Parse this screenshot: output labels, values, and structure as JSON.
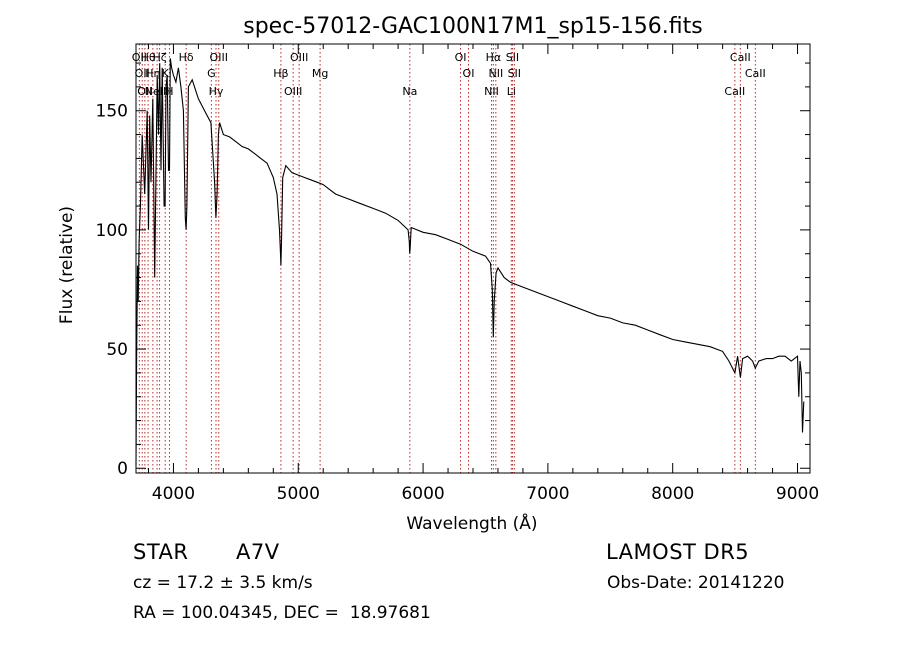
{
  "chart_data": {
    "type": "line",
    "title": "spec-57012-GAC100N17M1_sp15-156.fits",
    "xlabel": "Wavelength (Å)",
    "ylabel": "Flux (relative)",
    "xlim": [
      3700,
      9100
    ],
    "ylim": [
      -2,
      178
    ],
    "xticks": [
      4000,
      5000,
      6000,
      7000,
      8000,
      9000
    ],
    "yticks": [
      0,
      50,
      100,
      150
    ],
    "grid": false,
    "series": [
      {
        "x": [
          3700,
          3705,
          3712,
          3718,
          3725,
          3735,
          3750,
          3770,
          3790,
          3800,
          3810,
          3820,
          3835,
          3850,
          3870,
          3880,
          3890,
          3900,
          3910,
          3925,
          3933,
          3940,
          3950,
          3960,
          3968,
          3975,
          3985,
          4000,
          4020,
          4040,
          4060,
          4080,
          4095,
          4101,
          4108,
          4120,
          4150,
          4200,
          4250,
          4300,
          4330,
          4340,
          4350,
          4360,
          4370,
          4400,
          4450,
          4500,
          4550,
          4600,
          4650,
          4700,
          4750,
          4800,
          4830,
          4850,
          4858,
          4861,
          4866,
          4875,
          4900,
          4950,
          5000,
          5050,
          5100,
          5150,
          5200,
          5250,
          5300,
          5400,
          5500,
          5600,
          5700,
          5800,
          5880,
          5890,
          5893,
          5896,
          5905,
          6000,
          6100,
          6200,
          6300,
          6400,
          6500,
          6540,
          6555,
          6563,
          6570,
          6585,
          6600,
          6650,
          6700,
          6800,
          6900,
          7000,
          7100,
          7200,
          7300,
          7400,
          7500,
          7600,
          7700,
          7800,
          7900,
          8000,
          8100,
          8200,
          8300,
          8400,
          8450,
          8498,
          8520,
          8542,
          8560,
          8600,
          8640,
          8662,
          8690,
          8750,
          8800,
          8850,
          8900,
          8950,
          9000,
          9010,
          9020,
          9030,
          9040,
          9050
        ],
        "y": [
          1,
          45,
          85,
          70,
          95,
          110,
          140,
          115,
          150,
          100,
          148,
          120,
          155,
          80,
          165,
          140,
          170,
          125,
          168,
          110,
          110,
          160,
          165,
          125,
          125,
          172,
          168,
          165,
          162,
          168,
          160,
          150,
          105,
          100,
          110,
          160,
          163,
          155,
          150,
          145,
          120,
          105,
          115,
          140,
          145,
          140,
          139,
          137,
          135,
          134,
          132,
          130,
          128,
          122,
          115,
          100,
          90,
          85,
          95,
          122,
          127,
          124,
          123,
          122,
          121,
          120,
          119,
          117,
          115,
          113,
          111,
          109,
          107,
          104,
          100,
          95,
          90,
          92,
          101,
          99,
          98,
          96,
          94,
          91,
          89,
          86,
          75,
          55,
          70,
          82,
          84,
          80,
          78,
          76,
          74,
          72,
          70,
          68,
          66,
          64,
          63,
          61,
          60,
          58,
          56,
          54,
          53,
          52,
          51,
          49,
          45,
          40,
          47,
          38,
          46,
          47,
          45,
          42,
          45,
          46,
          46,
          47,
          47,
          45,
          47,
          30,
          45,
          40,
          15,
          28
        ]
      }
    ],
    "lines": [
      {
        "x": 3727,
        "labels": [
          "OII"
        ]
      },
      {
        "x": 3750,
        "labels": [
          "OII"
        ]
      },
      {
        "x": 3771,
        "labels": [
          "OII"
        ]
      },
      {
        "x": 3797,
        "labels": [
          "Hθ"
        ]
      },
      {
        "x": 3835,
        "labels": [
          "Hη"
        ]
      },
      {
        "x": 3869,
        "labels": [
          "NeIII"
        ]
      },
      {
        "x": 3889,
        "labels": [
          "Hζ"
        ]
      },
      {
        "x": 3934,
        "labels": [
          "K"
        ]
      },
      {
        "x": 3968,
        "labels": [
          "H"
        ]
      },
      {
        "x": 4102,
        "labels": [
          "Hδ"
        ]
      },
      {
        "x": 4304,
        "labels": [
          "G"
        ]
      },
      {
        "x": 4341,
        "labels": [
          "Hγ"
        ]
      },
      {
        "x": 4363,
        "labels": [
          "OIII"
        ]
      },
      {
        "x": 4861,
        "labels": [
          "Hβ"
        ]
      },
      {
        "x": 4959,
        "labels": [
          "OIII"
        ]
      },
      {
        "x": 5007,
        "labels": [
          "OIII"
        ]
      },
      {
        "x": 5175,
        "labels": [
          "Mg"
        ]
      },
      {
        "x": 5894,
        "labels": [
          "Na"
        ]
      },
      {
        "x": 6300,
        "labels": [
          "OI"
        ]
      },
      {
        "x": 6364,
        "labels": [
          "OI"
        ]
      },
      {
        "x": 6548,
        "labels": [
          "NII"
        ]
      },
      {
        "x": 6563,
        "labels": [
          "Hα"
        ]
      },
      {
        "x": 6583,
        "labels": [
          "NII"
        ]
      },
      {
        "x": 6707,
        "labels": [
          "Li"
        ]
      },
      {
        "x": 6716,
        "labels": [
          "SII"
        ]
      },
      {
        "x": 6731,
        "labels": [
          "SII"
        ]
      },
      {
        "x": 8498,
        "labels": [
          "CaII"
        ]
      },
      {
        "x": 8542,
        "labels": [
          "CaII"
        ]
      },
      {
        "x": 8662,
        "labels": [
          "CaII"
        ]
      }
    ],
    "line_color": "#b03030",
    "spectrum_color": "#000000"
  },
  "info": {
    "object_class": "STAR",
    "subclass": "A7V",
    "survey": "LAMOST DR5",
    "cz": "cz = 17.2 ± 3.5 km/s",
    "obs_date": "Obs-Date: 20141220",
    "coords": "RA = 100.04345, DEC =  18.97681"
  }
}
